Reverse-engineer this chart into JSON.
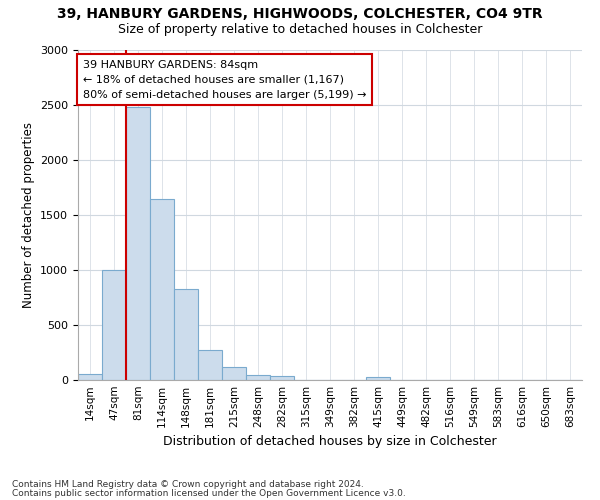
{
  "title1": "39, HANBURY GARDENS, HIGHWOODS, COLCHESTER, CO4 9TR",
  "title2": "Size of property relative to detached houses in Colchester",
  "xlabel": "Distribution of detached houses by size in Colchester",
  "ylabel": "Number of detached properties",
  "categories": [
    "14sqm",
    "47sqm",
    "81sqm",
    "114sqm",
    "148sqm",
    "181sqm",
    "215sqm",
    "248sqm",
    "282sqm",
    "315sqm",
    "349sqm",
    "382sqm",
    "415sqm",
    "449sqm",
    "482sqm",
    "516sqm",
    "549sqm",
    "583sqm",
    "616sqm",
    "650sqm",
    "683sqm"
  ],
  "values": [
    55,
    1000,
    2480,
    1650,
    830,
    270,
    120,
    50,
    40,
    0,
    0,
    0,
    30,
    0,
    0,
    0,
    0,
    0,
    0,
    0,
    0
  ],
  "bar_color": "#ccdcec",
  "bar_edge_color": "#7aaace",
  "vline_color": "#cc0000",
  "vline_bin": 2,
  "annotation_text": "39 HANBURY GARDENS: 84sqm\n← 18% of detached houses are smaller (1,167)\n80% of semi-detached houses are larger (5,199) →",
  "annotation_box_color": "#cc0000",
  "ylim": [
    0,
    3000
  ],
  "yticks": [
    0,
    500,
    1000,
    1500,
    2000,
    2500,
    3000
  ],
  "footer1": "Contains HM Land Registry data © Crown copyright and database right 2024.",
  "footer2": "Contains public sector information licensed under the Open Government Licence v3.0.",
  "bg_color": "#ffffff",
  "plot_bg_color": "#ffffff",
  "grid_color": "#d0d8e0"
}
